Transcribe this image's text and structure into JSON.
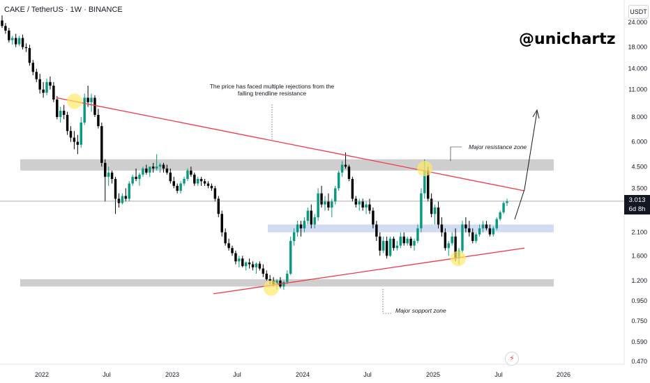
{
  "header": {
    "symbol": "CAKE / TetherUS · 1W · BINANCE"
  },
  "watermark": "@unichartz",
  "currency": "USDT",
  "last_price": {
    "value": "3.013",
    "countdown": "6d 8h"
  },
  "annotations": {
    "rejections": "The price has faced multiple rejections from the falling trendline resistance",
    "resistance_zone": "Major resistance zone",
    "support_zone": "Major sopport zone"
  },
  "icons": {
    "alert": "alert-icon"
  },
  "colors": {
    "up": "#089981",
    "down": "#000000",
    "trendline": "#f23645",
    "zone": "#bdbdbd",
    "mid_zone": "#c5d3f0",
    "highlight": "#ffe96a"
  },
  "chart_data": {
    "type": "candlestick",
    "scale": "log",
    "y_ticks": [
      "24.000",
      "18.000",
      "14.000",
      "11.000",
      "8.000",
      "6.000",
      "4.500",
      "3.500",
      "2.100",
      "1.600",
      "1.200",
      "0.950",
      "0.750",
      "0.590",
      "0.470"
    ],
    "x_ticks": [
      "2022",
      "Jul",
      "2023",
      "Jul",
      "2024",
      "Jul",
      "2025",
      "Jul",
      "2026"
    ],
    "zones": [
      {
        "name": "Major resistance zone",
        "from": 4.3,
        "to": 4.9
      },
      {
        "name": "mid support",
        "from": 2.1,
        "to": 2.3
      },
      {
        "name": "Major sopport zone",
        "from": 1.12,
        "to": 1.22
      }
    ],
    "trendlines": [
      {
        "name": "falling resistance",
        "from": [
          "2022-03",
          10.0
        ],
        "to": [
          "2025-09",
          3.4
        ]
      },
      {
        "name": "rising support",
        "from": [
          "2023-08",
          1.03
        ],
        "to": [
          "2025-09",
          1.75
        ]
      }
    ],
    "projection": [
      [
        "2025-08",
        2.4
      ],
      [
        "2025-09",
        3.2
      ],
      [
        "2025-10",
        8.3
      ]
    ],
    "candles": [
      [
        24.5,
        26.0,
        22.5,
        23.0
      ],
      [
        23.0,
        23.8,
        21.0,
        21.8
      ],
      [
        21.8,
        22.5,
        19.0,
        19.5
      ],
      [
        19.5,
        20.5,
        18.5,
        20.0
      ],
      [
        20.0,
        21.0,
        18.0,
        18.6
      ],
      [
        18.6,
        20.5,
        18.2,
        20.0
      ],
      [
        20.0,
        20.8,
        17.5,
        18.0
      ],
      [
        18.0,
        18.8,
        17.0,
        17.8
      ],
      [
        17.8,
        18.5,
        14.5,
        15.0
      ],
      [
        15.0,
        15.5,
        13.0,
        13.5
      ],
      [
        13.5,
        14.0,
        12.0,
        12.4
      ],
      [
        12.4,
        13.2,
        10.5,
        11.0
      ],
      [
        11.0,
        12.0,
        10.0,
        10.6
      ],
      [
        10.6,
        12.5,
        10.3,
        12.0
      ],
      [
        12.0,
        12.8,
        11.0,
        11.5
      ],
      [
        11.5,
        12.0,
        9.5,
        9.8
      ],
      [
        9.8,
        10.2,
        7.8,
        8.0
      ],
      [
        8.0,
        9.0,
        7.5,
        8.6
      ],
      [
        8.6,
        9.2,
        7.8,
        8.2
      ],
      [
        8.2,
        8.5,
        6.5,
        6.8
      ],
      [
        6.8,
        7.2,
        6.0,
        6.3
      ],
      [
        6.3,
        6.8,
        5.5,
        6.0
      ],
      [
        6.0,
        6.5,
        5.2,
        5.8
      ],
      [
        5.8,
        8.0,
        5.6,
        7.5
      ],
      [
        7.5,
        10.5,
        7.3,
        10.0
      ],
      [
        10.0,
        11.5,
        9.0,
        9.5
      ],
      [
        9.5,
        10.5,
        8.5,
        10.0
      ],
      [
        10.0,
        10.3,
        8.0,
        8.2
      ],
      [
        8.2,
        8.8,
        7.0,
        7.2
      ],
      [
        7.2,
        7.5,
        4.5,
        4.7
      ],
      [
        4.7,
        4.9,
        3.0,
        4.0
      ],
      [
        4.0,
        4.5,
        3.6,
        4.2
      ],
      [
        4.2,
        4.3,
        3.7,
        3.9
      ],
      [
        3.9,
        4.0,
        2.6,
        3.1
      ],
      [
        3.1,
        3.3,
        2.8,
        2.95
      ],
      [
        2.95,
        3.3,
        2.9,
        3.2
      ],
      [
        3.2,
        3.5,
        3.0,
        3.1
      ],
      [
        3.1,
        3.8,
        3.0,
        3.7
      ],
      [
        3.7,
        4.1,
        3.6,
        4.0
      ],
      [
        4.0,
        4.4,
        3.8,
        3.9
      ],
      [
        3.9,
        4.2,
        3.6,
        4.1
      ],
      [
        4.1,
        4.5,
        4.0,
        4.4
      ],
      [
        4.4,
        4.6,
        4.1,
        4.2
      ],
      [
        4.2,
        4.5,
        4.0,
        4.5
      ],
      [
        4.5,
        4.7,
        4.2,
        4.4
      ],
      [
        4.4,
        5.2,
        4.3,
        4.5
      ],
      [
        4.5,
        4.7,
        4.2,
        4.6
      ],
      [
        4.6,
        4.7,
        4.2,
        4.4
      ],
      [
        4.4,
        4.6,
        4.1,
        4.2
      ],
      [
        4.2,
        4.4,
        3.7,
        3.8
      ],
      [
        3.8,
        4.0,
        3.5,
        3.6
      ],
      [
        3.6,
        3.7,
        3.3,
        3.4
      ],
      [
        3.4,
        3.8,
        3.3,
        3.7
      ],
      [
        3.7,
        4.0,
        3.6,
        3.9
      ],
      [
        3.9,
        4.4,
        3.8,
        4.3
      ],
      [
        4.3,
        4.5,
        4.0,
        4.1
      ],
      [
        4.1,
        4.2,
        3.6,
        3.7
      ],
      [
        3.7,
        4.0,
        3.6,
        3.9
      ],
      [
        3.9,
        4.0,
        3.6,
        3.8
      ],
      [
        3.8,
        3.9,
        3.6,
        3.7
      ],
      [
        3.7,
        3.8,
        3.5,
        3.6
      ],
      [
        3.6,
        3.7,
        3.4,
        3.5
      ],
      [
        3.5,
        3.6,
        3.0,
        3.1
      ],
      [
        3.1,
        3.2,
        2.5,
        2.6
      ],
      [
        2.6,
        2.7,
        2.0,
        2.1
      ],
      [
        2.1,
        2.2,
        1.8,
        1.85
      ],
      [
        1.85,
        1.95,
        1.7,
        1.75
      ],
      [
        1.75,
        1.8,
        1.6,
        1.65
      ],
      [
        1.65,
        1.7,
        1.45,
        1.5
      ],
      [
        1.5,
        1.6,
        1.4,
        1.55
      ],
      [
        1.55,
        1.6,
        1.4,
        1.42
      ],
      [
        1.42,
        1.5,
        1.35,
        1.48
      ],
      [
        1.48,
        1.55,
        1.38,
        1.45
      ],
      [
        1.45,
        1.5,
        1.35,
        1.4
      ],
      [
        1.4,
        1.48,
        1.3,
        1.46
      ],
      [
        1.46,
        1.5,
        1.35,
        1.38
      ],
      [
        1.38,
        1.45,
        1.25,
        1.3
      ],
      [
        1.3,
        1.35,
        1.2,
        1.22
      ],
      [
        1.22,
        1.28,
        1.15,
        1.2
      ],
      [
        1.2,
        1.25,
        1.12,
        1.15
      ],
      [
        1.15,
        1.22,
        1.08,
        1.2
      ],
      [
        1.2,
        1.25,
        1.1,
        1.12
      ],
      [
        1.12,
        1.2,
        1.08,
        1.18
      ],
      [
        1.18,
        1.35,
        1.15,
        1.3
      ],
      [
        1.3,
        2.0,
        1.28,
        1.9
      ],
      [
        1.9,
        2.2,
        1.8,
        2.1
      ],
      [
        2.1,
        2.4,
        2.0,
        2.3
      ],
      [
        2.3,
        2.4,
        2.0,
        2.2
      ],
      [
        2.2,
        2.5,
        2.1,
        2.4
      ],
      [
        2.4,
        2.8,
        2.3,
        2.7
      ],
      [
        2.7,
        2.9,
        2.2,
        2.3
      ],
      [
        2.3,
        2.6,
        2.2,
        2.5
      ],
      [
        2.5,
        3.5,
        2.4,
        3.3
      ],
      [
        3.3,
        3.6,
        2.8,
        2.9
      ],
      [
        2.9,
        3.2,
        2.7,
        3.0
      ],
      [
        3.0,
        3.3,
        2.7,
        2.8
      ],
      [
        2.8,
        3.1,
        2.5,
        3.0
      ],
      [
        3.0,
        3.6,
        2.9,
        3.5
      ],
      [
        3.5,
        4.3,
        3.4,
        4.2
      ],
      [
        4.2,
        4.8,
        4.0,
        4.6
      ],
      [
        4.6,
        5.3,
        4.4,
        4.5
      ],
      [
        4.5,
        4.6,
        3.8,
        3.9
      ],
      [
        3.9,
        4.0,
        3.0,
        3.1
      ],
      [
        3.1,
        3.2,
        2.8,
        2.9
      ],
      [
        2.9,
        3.1,
        2.7,
        3.0
      ],
      [
        3.0,
        3.1,
        2.7,
        2.8
      ],
      [
        2.8,
        3.0,
        2.6,
        2.9
      ],
      [
        2.9,
        3.1,
        2.6,
        2.7
      ],
      [
        2.7,
        2.8,
        2.2,
        2.3
      ],
      [
        2.3,
        2.4,
        1.9,
        2.0
      ],
      [
        2.0,
        2.1,
        1.6,
        1.7
      ],
      [
        1.7,
        2.0,
        1.65,
        1.9
      ],
      [
        1.9,
        2.0,
        1.55,
        1.6
      ],
      [
        1.6,
        2.0,
        1.58,
        1.95
      ],
      [
        1.95,
        2.0,
        1.7,
        1.75
      ],
      [
        1.75,
        1.9,
        1.7,
        1.8
      ],
      [
        1.8,
        2.1,
        1.75,
        2.0
      ],
      [
        2.0,
        2.1,
        1.8,
        1.85
      ],
      [
        1.85,
        2.0,
        1.8,
        1.95
      ],
      [
        1.95,
        2.0,
        1.75,
        1.8
      ],
      [
        1.8,
        1.95,
        1.7,
        1.9
      ],
      [
        1.9,
        2.3,
        1.85,
        2.2
      ],
      [
        2.2,
        3.5,
        2.1,
        3.3
      ],
      [
        3.3,
        4.9,
        3.1,
        4.3
      ],
      [
        4.3,
        4.5,
        3.0,
        3.1
      ],
      [
        3.1,
        3.3,
        2.5,
        2.6
      ],
      [
        2.6,
        2.9,
        2.3,
        2.8
      ],
      [
        2.8,
        3.0,
        2.2,
        2.3
      ],
      [
        2.3,
        2.5,
        2.0,
        2.1
      ],
      [
        2.1,
        2.2,
        1.7,
        1.75
      ],
      [
        1.75,
        1.9,
        1.6,
        1.85
      ],
      [
        1.85,
        2.1,
        1.8,
        2.0
      ],
      [
        2.0,
        2.2,
        1.5,
        1.55
      ],
      [
        1.55,
        1.75,
        1.45,
        1.7
      ],
      [
        1.7,
        2.4,
        1.65,
        2.3
      ],
      [
        2.3,
        2.5,
        2.1,
        2.2
      ],
      [
        2.2,
        2.4,
        2.0,
        2.1
      ],
      [
        2.1,
        2.2,
        1.85,
        1.9
      ],
      [
        1.9,
        2.1,
        1.85,
        2.05
      ],
      [
        2.05,
        2.3,
        2.0,
        2.2
      ],
      [
        2.2,
        2.4,
        2.1,
        2.3
      ],
      [
        2.3,
        2.4,
        2.15,
        2.2
      ],
      [
        2.2,
        2.3,
        2.0,
        2.05
      ],
      [
        2.05,
        2.25,
        2.0,
        2.2
      ],
      [
        2.2,
        2.5,
        2.15,
        2.45
      ],
      [
        2.45,
        2.7,
        2.4,
        2.65
      ],
      [
        2.65,
        3.0,
        2.6,
        2.95
      ],
      [
        2.95,
        3.1,
        2.85,
        3.01
      ]
    ]
  }
}
